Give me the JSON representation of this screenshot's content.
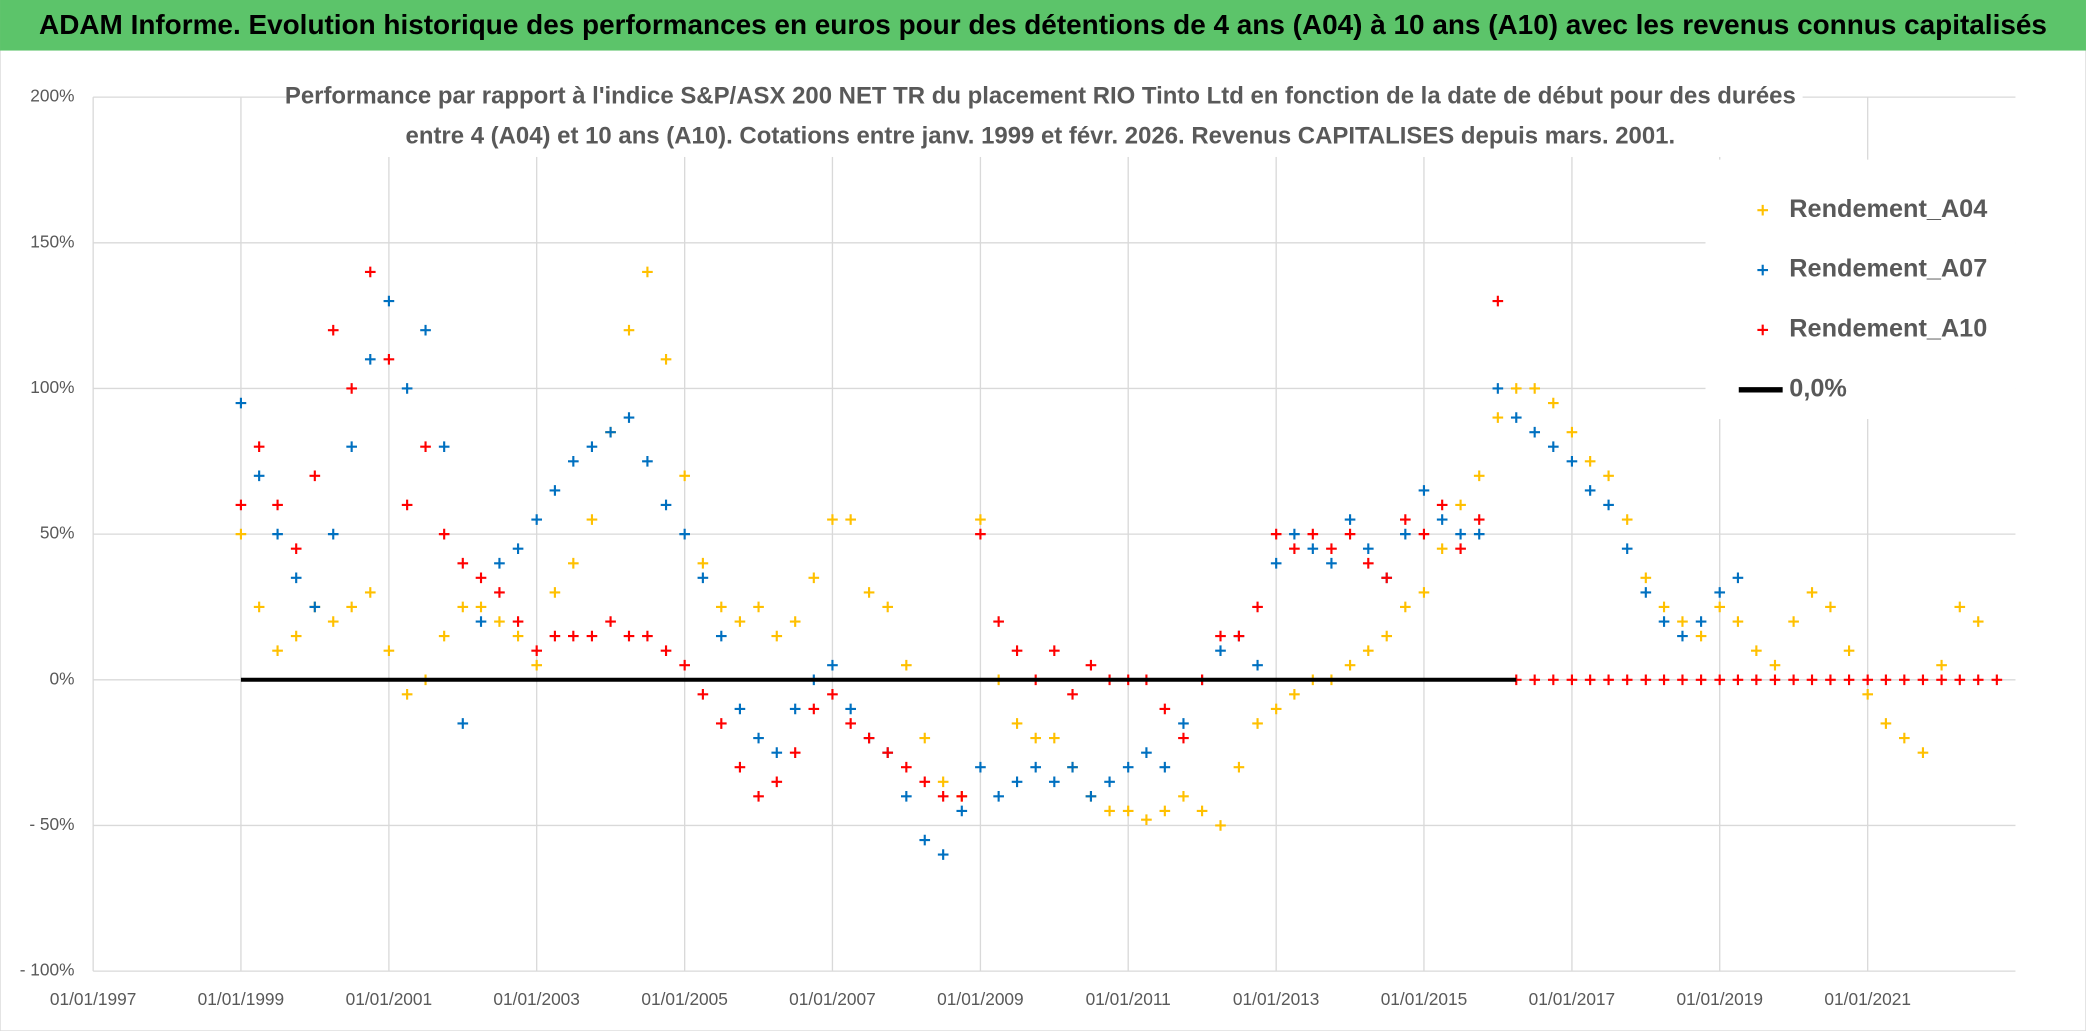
{
  "header": {
    "title": "ADAM Informe. Evolution historique des performances en euros pour des détentions de 4 ans (A04) à 10 ans (A10) avec les revenus connus capitalisés"
  },
  "chart_data": {
    "type": "scatter",
    "title": [
      "Performance par rapport à l'indice S&P/ASX 200 NET TR  du placement RIO Tinto Ltd en fonction de la date de début pour des durées",
      "entre 4 (A04) et 10 ans (A10). Cotations entre janv. 1999 et févr. 2026. Revenus CAPITALISES depuis mars. 2001."
    ],
    "xlim": [
      "01/01/1997",
      "01/01/2023"
    ],
    "xticks": [
      "01/01/1997",
      "01/01/1999",
      "01/01/2001",
      "01/01/2003",
      "01/01/2005",
      "01/01/2007",
      "01/01/2009",
      "01/01/2011",
      "01/01/2013",
      "01/01/2015",
      "01/01/2017",
      "01/01/2019",
      "01/01/2021"
    ],
    "ylim": [
      -100,
      200
    ],
    "yticks": [
      {
        "value": -100,
        "label": "- 100%"
      },
      {
        "value": -50,
        "label": "- 50%"
      },
      {
        "value": 0,
        "label": "0%"
      },
      {
        "value": 50,
        "label": "50%"
      },
      {
        "value": 100,
        "label": "100%"
      },
      {
        "value": 150,
        "label": "150%"
      },
      {
        "value": 200,
        "label": "200%"
      }
    ],
    "grid": true,
    "legend": "top-right",
    "series": [
      {
        "name": "Rendement_A04",
        "color": "#ffc000",
        "marker": "+",
        "x": [
          "01/01/1999",
          "01/04/1999",
          "01/07/1999",
          "01/10/1999",
          "01/01/2000",
          "01/04/2000",
          "01/07/2000",
          "01/10/2000",
          "01/01/2001",
          "01/04/2001",
          "01/07/2001",
          "01/10/2001",
          "01/01/2002",
          "01/04/2002",
          "01/07/2002",
          "01/10/2002",
          "01/01/2003",
          "01/04/2003",
          "01/07/2003",
          "01/10/2003",
          "01/01/2004",
          "01/04/2004",
          "01/07/2004",
          "01/10/2004",
          "01/01/2005",
          "01/04/2005",
          "01/07/2005",
          "01/10/2005",
          "01/01/2006",
          "01/04/2006",
          "01/07/2006",
          "01/10/2006",
          "01/01/2007",
          "01/04/2007",
          "01/07/2007",
          "01/10/2007",
          "01/01/2008",
          "01/04/2008",
          "01/07/2008",
          "01/10/2008",
          "01/01/2009",
          "01/04/2009",
          "01/07/2009",
          "01/10/2009",
          "01/01/2010",
          "01/04/2010",
          "01/07/2010",
          "01/10/2010",
          "01/01/2011",
          "01/04/2011",
          "01/07/2011",
          "01/10/2011",
          "01/01/2012",
          "01/04/2012",
          "01/07/2012",
          "01/10/2012",
          "01/01/2013",
          "01/04/2013",
          "01/07/2013",
          "01/10/2013",
          "01/01/2014",
          "01/04/2014",
          "01/07/2014",
          "01/10/2014",
          "01/01/2015",
          "01/04/2015",
          "01/07/2015",
          "01/10/2015",
          "01/01/2016",
          "01/04/2016",
          "01/07/2016",
          "01/10/2016",
          "01/01/2017",
          "01/04/2017",
          "01/07/2017",
          "01/10/2017",
          "01/01/2018",
          "01/04/2018",
          "01/07/2018",
          "01/10/2018",
          "01/01/2019",
          "01/04/2019",
          "01/07/2019",
          "01/10/2019",
          "01/01/2020",
          "01/04/2020",
          "01/07/2020",
          "01/10/2020",
          "01/01/2021",
          "01/04/2021",
          "01/07/2021",
          "01/10/2021",
          "01/01/2022",
          "01/04/2022",
          "01/07/2022"
        ],
        "values": [
          50,
          25,
          10,
          15,
          25,
          20,
          25,
          30,
          10,
          -5,
          0,
          15,
          25,
          25,
          20,
          15,
          5,
          30,
          40,
          55,
          85,
          120,
          140,
          110,
          70,
          40,
          25,
          20,
          25,
          15,
          20,
          35,
          55,
          55,
          30,
          25,
          5,
          -20,
          -35,
          -40,
          55,
          0,
          -15,
          -20,
          -20,
          -30,
          -40,
          -45,
          -45,
          -48,
          -45,
          -40,
          -45,
          -50,
          -30,
          -15,
          -10,
          -5,
          0,
          0,
          5,
          10,
          15,
          25,
          30,
          45,
          60,
          70,
          90,
          100,
          100,
          95,
          85,
          75,
          70,
          55,
          35,
          25,
          20,
          15,
          25,
          20,
          10,
          5,
          20,
          30,
          25,
          10,
          -5,
          -15,
          -20,
          -25,
          5,
          25,
          20
        ]
      },
      {
        "name": "Rendement_A07",
        "color": "#0070c0",
        "marker": "+",
        "x": [
          "01/01/1999",
          "01/04/1999",
          "01/07/1999",
          "01/10/1999",
          "01/01/2000",
          "01/04/2000",
          "01/07/2000",
          "01/10/2000",
          "01/01/2001",
          "01/04/2001",
          "01/07/2001",
          "01/10/2001",
          "01/01/2002",
          "01/04/2002",
          "01/07/2002",
          "01/10/2002",
          "01/01/2003",
          "01/04/2003",
          "01/07/2003",
          "01/10/2003",
          "01/01/2004",
          "01/04/2004",
          "01/07/2004",
          "01/10/2004",
          "01/01/2005",
          "01/04/2005",
          "01/07/2005",
          "01/10/2005",
          "01/01/2006",
          "01/04/2006",
          "01/07/2006",
          "01/10/2006",
          "01/01/2007",
          "01/04/2007",
          "01/07/2007",
          "01/10/2007",
          "01/01/2008",
          "01/04/2008",
          "01/07/2008",
          "01/10/2008",
          "01/01/2009",
          "01/04/2009",
          "01/07/2009",
          "01/10/2009",
          "01/01/2010",
          "01/04/2010",
          "01/07/2010",
          "01/10/2010",
          "01/01/2011",
          "01/04/2011",
          "01/07/2011",
          "01/10/2011",
          "01/01/2012",
          "01/04/2012",
          "01/07/2012",
          "01/10/2012",
          "01/01/2013",
          "01/04/2013",
          "01/07/2013",
          "01/10/2013",
          "01/01/2014",
          "01/04/2014",
          "01/07/2014",
          "01/10/2014",
          "01/01/2015",
          "01/04/2015",
          "01/07/2015",
          "01/10/2015",
          "01/01/2016",
          "01/04/2016",
          "01/07/2016",
          "01/10/2016",
          "01/01/2017",
          "01/04/2017",
          "01/07/2017",
          "01/10/2017",
          "01/01/2018",
          "01/04/2018",
          "01/07/2018",
          "01/10/2018",
          "01/01/2019",
          "01/04/2019"
        ],
        "values": [
          95,
          70,
          50,
          35,
          25,
          50,
          80,
          110,
          130,
          100,
          120,
          80,
          -15,
          20,
          40,
          45,
          55,
          65,
          75,
          80,
          85,
          90,
          75,
          60,
          50,
          35,
          15,
          -10,
          -20,
          -25,
          -10,
          0,
          5,
          -10,
          -20,
          -25,
          -40,
          -55,
          -60,
          -45,
          -30,
          -40,
          -35,
          -30,
          -35,
          -30,
          -40,
          -35,
          -30,
          -25,
          -30,
          -15,
          0,
          10,
          15,
          5,
          40,
          50,
          45,
          40,
          55,
          45,
          35,
          50,
          65,
          55,
          50,
          50,
          100,
          90,
          85,
          80,
          75,
          65,
          60,
          45,
          30,
          20,
          15,
          20,
          30,
          35
        ]
      },
      {
        "name": "Rendement_A10",
        "color": "#ff0000",
        "marker": "+",
        "x": [
          "01/01/1999",
          "01/04/1999",
          "01/07/1999",
          "01/10/1999",
          "01/01/2000",
          "01/04/2000",
          "01/07/2000",
          "01/10/2000",
          "01/01/2001",
          "01/04/2001",
          "01/07/2001",
          "01/10/2001",
          "01/01/2002",
          "01/04/2002",
          "01/07/2002",
          "01/10/2002",
          "01/01/2003",
          "01/04/2003",
          "01/07/2003",
          "01/10/2003",
          "01/01/2004",
          "01/04/2004",
          "01/07/2004",
          "01/10/2004",
          "01/01/2005",
          "01/04/2005",
          "01/07/2005",
          "01/10/2005",
          "01/01/2006",
          "01/04/2006",
          "01/07/2006",
          "01/10/2006",
          "01/01/2007",
          "01/04/2007",
          "01/07/2007",
          "01/10/2007",
          "01/01/2008",
          "01/04/2008",
          "01/07/2008",
          "01/10/2008",
          "01/01/2009",
          "01/04/2009",
          "01/07/2009",
          "01/10/2009",
          "01/01/2010",
          "01/04/2010",
          "01/07/2010",
          "01/10/2010",
          "01/01/2011",
          "01/04/2011",
          "01/07/2011",
          "01/10/2011",
          "01/01/2012",
          "01/04/2012",
          "01/07/2012",
          "01/10/2012",
          "01/01/2013",
          "01/04/2013",
          "01/07/2013",
          "01/10/2013",
          "01/01/2014",
          "01/04/2014",
          "01/07/2014",
          "01/10/2014",
          "01/01/2015",
          "01/04/2015",
          "01/07/2015",
          "01/10/2015",
          "01/01/2016",
          "01/04/2016",
          "01/07/2016",
          "01/10/2016",
          "01/01/2017",
          "01/04/2017",
          "01/07/2017",
          "01/10/2017",
          "01/01/2018",
          "01/04/2018",
          "01/07/2018",
          "01/10/2018",
          "01/01/2019",
          "01/04/2019",
          "01/07/2019",
          "01/10/2019",
          "01/01/2020",
          "01/04/2020",
          "01/07/2020",
          "01/10/2020",
          "01/01/2021",
          "01/04/2021",
          "01/07/2021",
          "01/10/2021",
          "01/01/2022",
          "01/04/2022",
          "01/07/2022",
          "01/10/2022"
        ],
        "values": [
          60,
          80,
          60,
          45,
          70,
          120,
          100,
          140,
          110,
          60,
          80,
          50,
          40,
          35,
          30,
          20,
          10,
          15,
          15,
          15,
          20,
          15,
          15,
          10,
          5,
          -5,
          -15,
          -30,
          -40,
          -35,
          -25,
          -10,
          -5,
          -15,
          -20,
          -25,
          -30,
          -35,
          -40,
          -40,
          50,
          20,
          10,
          0,
          10,
          -5,
          5,
          0,
          0,
          0,
          -10,
          -20,
          0,
          15,
          15,
          25,
          50,
          45,
          50,
          45,
          50,
          40,
          35,
          55,
          50,
          60,
          45,
          55,
          130,
          0,
          0,
          0,
          0,
          0,
          0,
          0,
          0,
          0,
          0,
          0,
          0,
          0,
          0,
          0,
          0,
          0,
          0,
          0,
          0,
          0,
          0,
          0,
          0,
          0,
          0,
          0
        ]
      },
      {
        "name": "0,0%",
        "color": "#000000",
        "marker": "line",
        "x": [
          "01/01/1999",
          "01/04/2016"
        ],
        "values": [
          0,
          0
        ]
      }
    ]
  }
}
